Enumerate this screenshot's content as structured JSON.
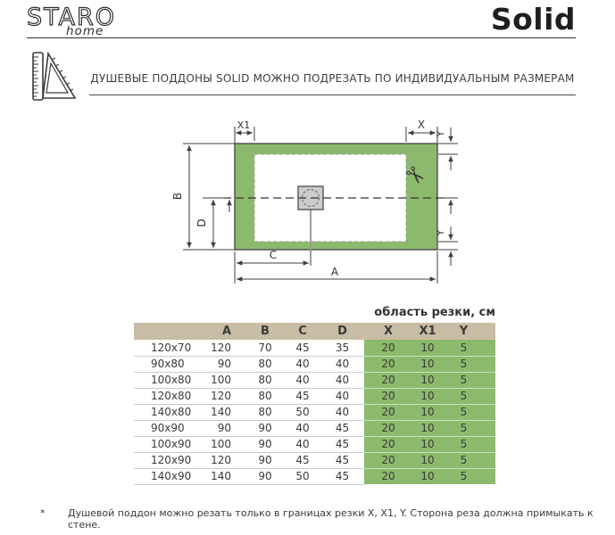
{
  "colors": {
    "green": "#8cba6c",
    "tan": "#c9bca4",
    "line": "#3d3d3d",
    "row_divider": "#bccfd6"
  },
  "header": {
    "brand": "STARO",
    "brand_sub": "home",
    "product": "Solid"
  },
  "banner": {
    "text": "ДУШЕВЫЕ ПОДДОНЫ SOLID МОЖНО ПОДРЕЗАТЬ ПО ИНДИВИДУАЛЬНЫМ РАЗМЕРАМ"
  },
  "diagram": {
    "dim_a": "A",
    "dim_b": "B",
    "dim_c": "C",
    "dim_d": "D",
    "dim_x": "X",
    "dim_x1": "X1",
    "dim_y_top": "Y",
    "dim_y_bottom": "Y"
  },
  "table": {
    "area_title": "область резки, см",
    "columns": [
      "",
      "A",
      "B",
      "C",
      "D",
      "X",
      "X1",
      "Y"
    ],
    "green_from": 5,
    "rows": [
      [
        "120x70",
        "120",
        "70",
        "45",
        "35",
        "20",
        "10",
        "5"
      ],
      [
        "90x80",
        "90",
        "80",
        "40",
        "40",
        "20",
        "10",
        "5"
      ],
      [
        "100x80",
        "100",
        "80",
        "40",
        "40",
        "20",
        "10",
        "5"
      ],
      [
        "120x80",
        "120",
        "80",
        "45",
        "40",
        "20",
        "10",
        "5"
      ],
      [
        "140x80",
        "140",
        "80",
        "50",
        "40",
        "20",
        "10",
        "5"
      ],
      [
        "90x90",
        "90",
        "90",
        "40",
        "45",
        "20",
        "10",
        "5"
      ],
      [
        "100x90",
        "100",
        "90",
        "40",
        "45",
        "20",
        "10",
        "5"
      ],
      [
        "120x90",
        "120",
        "90",
        "45",
        "45",
        "20",
        "10",
        "5"
      ],
      [
        "140x90",
        "140",
        "90",
        "50",
        "45",
        "20",
        "10",
        "5"
      ]
    ]
  },
  "footnote": {
    "marker": "*",
    "text": "Душевой поддон можно резать только в границах резки X, X1, Y. Сторона реза должна примыкать к стене."
  }
}
